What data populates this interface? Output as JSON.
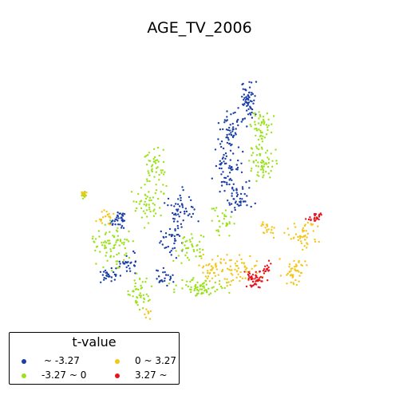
{
  "title": "AGE_TV_2006",
  "legend": {
    "title": "t-value",
    "items": [
      {
        "label": "~ -3.27",
        "color": "#1a3fa6"
      },
      {
        "label": "-3.27 ~ 0",
        "color": "#9be21c"
      },
      {
        "label": "0 ~ 3.27",
        "color": "#f5c518"
      },
      {
        "label": "3.27 ~",
        "color": "#e8141c"
      }
    ]
  },
  "colors": {
    "strong_negative": "#1a3fa6",
    "negative": "#9be21c",
    "positive": "#f5c518",
    "strong_positive": "#e8141c"
  }
}
